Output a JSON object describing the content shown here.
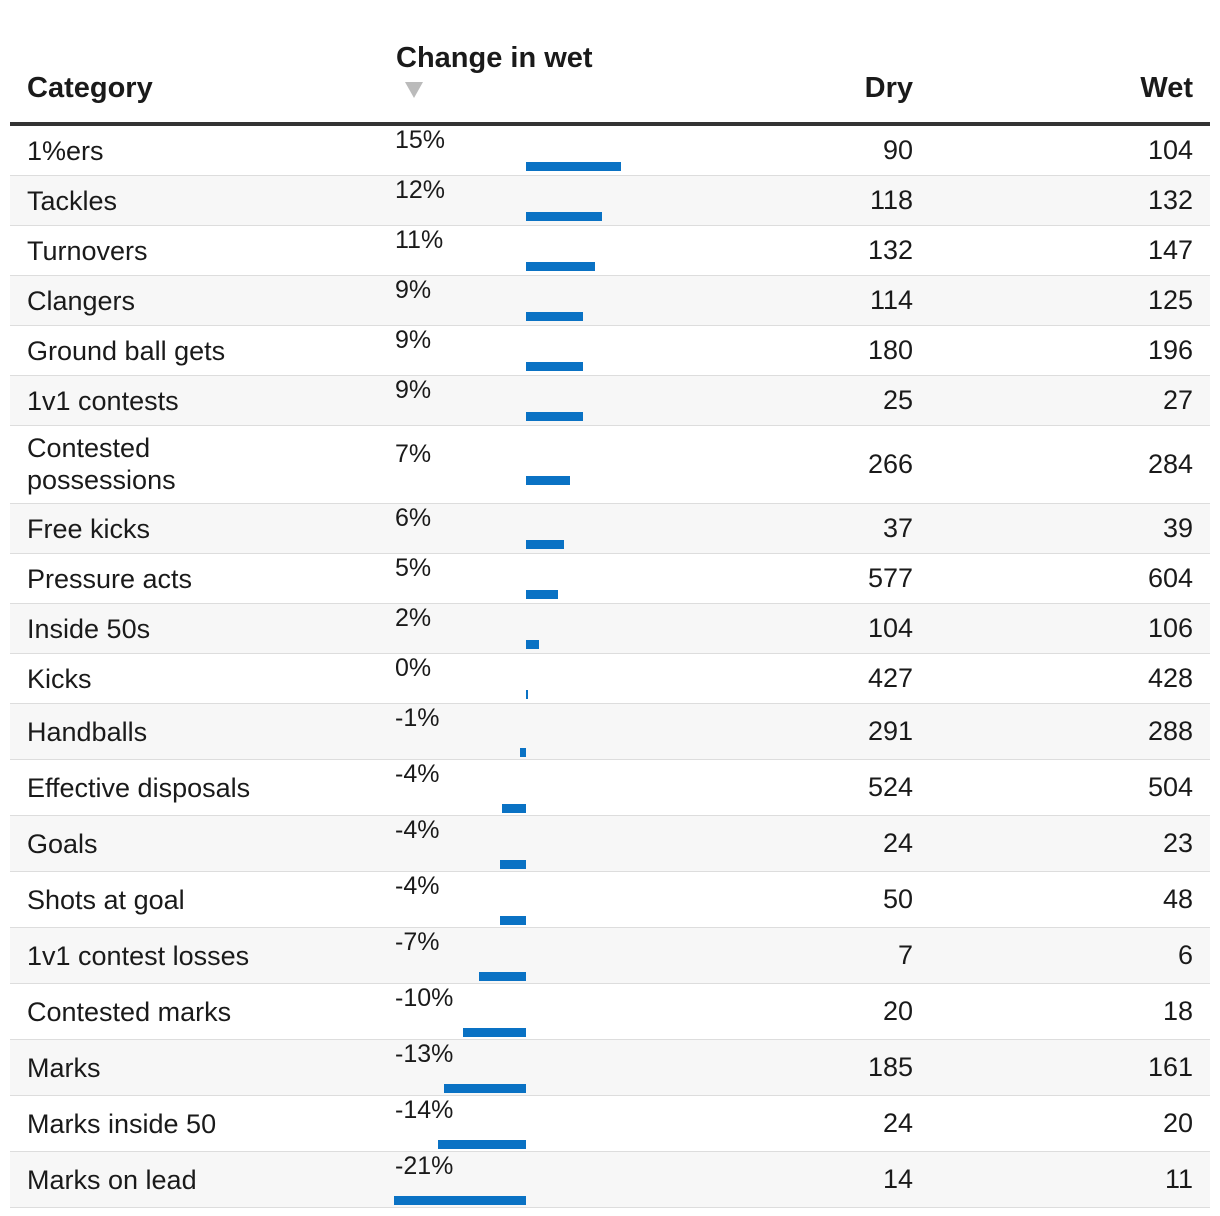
{
  "headers": {
    "category": "Category",
    "change": "Change in wet",
    "dry": "Dry",
    "wet": "Wet",
    "sort_icon": "sort-descending-triangle-icon"
  },
  "colors": {
    "bar": "#0a72c4",
    "alt_row": "#f7f7f7",
    "header_rule": "#333333"
  },
  "chart_data": {
    "type": "table",
    "columns": [
      "Category",
      "Change in wet",
      "Dry",
      "Wet"
    ],
    "bar_axis": {
      "zero": 0,
      "min": -21,
      "max": 15,
      "unit": "%"
    },
    "rows": [
      {
        "category": "1%ers",
        "change_label": "15%",
        "change": 15,
        "dry": "90",
        "wet": "104"
      },
      {
        "category": "Tackles",
        "change_label": "12%",
        "change": 12,
        "dry": "118",
        "wet": "132"
      },
      {
        "category": "Turnovers",
        "change_label": "11%",
        "change": 11,
        "dry": "132",
        "wet": "147"
      },
      {
        "category": "Clangers",
        "change_label": "9%",
        "change": 9,
        "dry": "114",
        "wet": "125"
      },
      {
        "category": "Ground ball gets",
        "change_label": "9%",
        "change": 9,
        "dry": "180",
        "wet": "196"
      },
      {
        "category": "1v1 contests",
        "change_label": "9%",
        "change": 9,
        "dry": "25",
        "wet": "27"
      },
      {
        "category": "Contested possessions",
        "change_label": "7%",
        "change": 7,
        "dry": "266",
        "wet": "284"
      },
      {
        "category": "Free kicks",
        "change_label": "6%",
        "change": 6,
        "dry": "37",
        "wet": "39"
      },
      {
        "category": "Pressure acts",
        "change_label": "5%",
        "change": 5,
        "dry": "577",
        "wet": "604"
      },
      {
        "category": "Inside 50s",
        "change_label": "2%",
        "change": 2,
        "dry": "104",
        "wet": "106"
      },
      {
        "category": "Kicks",
        "change_label": "0%",
        "change": 0.3,
        "dry": "427",
        "wet": "428"
      },
      {
        "category": "Handballs",
        "change_label": "-1%",
        "change": -1,
        "dry": "291",
        "wet": "288"
      },
      {
        "category": "Effective disposals",
        "change_label": "-4%",
        "change": -3.8,
        "dry": "524",
        "wet": "504"
      },
      {
        "category": "Goals",
        "change_label": "-4%",
        "change": -4.2,
        "dry": "24",
        "wet": "23"
      },
      {
        "category": "Shots at goal",
        "change_label": "-4%",
        "change": -4.2,
        "dry": "50",
        "wet": "48"
      },
      {
        "category": "1v1 contest losses",
        "change_label": "-7%",
        "change": -7.5,
        "dry": "7",
        "wet": "6"
      },
      {
        "category": "Contested marks",
        "change_label": "-10%",
        "change": -10,
        "dry": "20",
        "wet": "18"
      },
      {
        "category": "Marks",
        "change_label": "-13%",
        "change": -13,
        "dry": "185",
        "wet": "161"
      },
      {
        "category": "Marks inside 50",
        "change_label": "-14%",
        "change": -14,
        "dry": "24",
        "wet": "20"
      },
      {
        "category": "Marks on lead",
        "change_label": "-21%",
        "change": -21,
        "dry": "14",
        "wet": "11"
      }
    ]
  }
}
